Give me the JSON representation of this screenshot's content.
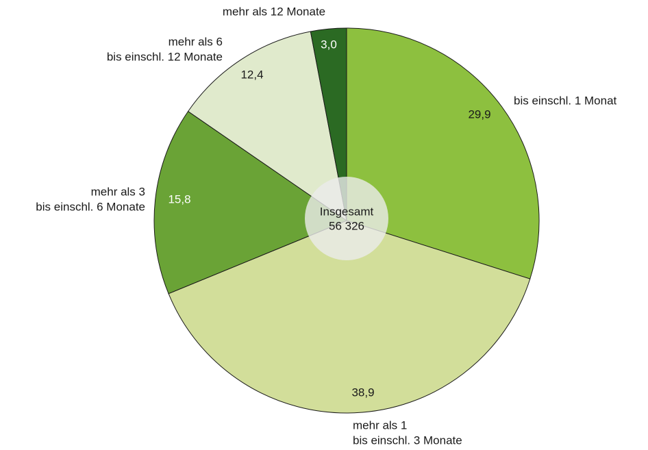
{
  "chart_data": {
    "type": "pie",
    "categories": [
      [
        "bis einschl. 1 Monat"
      ],
      [
        "mehr als 1",
        "bis einschl. 3 Monate"
      ],
      [
        "mehr als 3",
        "bis einschl. 6 Monate"
      ],
      [
        "mehr als 6",
        "bis einschl. 12 Monate"
      ],
      [
        "mehr als 12 Monate"
      ]
    ],
    "values": [
      29.9,
      38.9,
      15.8,
      12.4,
      3.0
    ],
    "value_labels": [
      "29,9",
      "38,9",
      "15,8",
      "12,4",
      "3,0"
    ],
    "colors": [
      "#8dc03f",
      "#d2de9a",
      "#6aa336",
      "#e0eacc",
      "#2b6a23"
    ],
    "center_text": [
      "Insgesamt",
      "56 326"
    ]
  }
}
